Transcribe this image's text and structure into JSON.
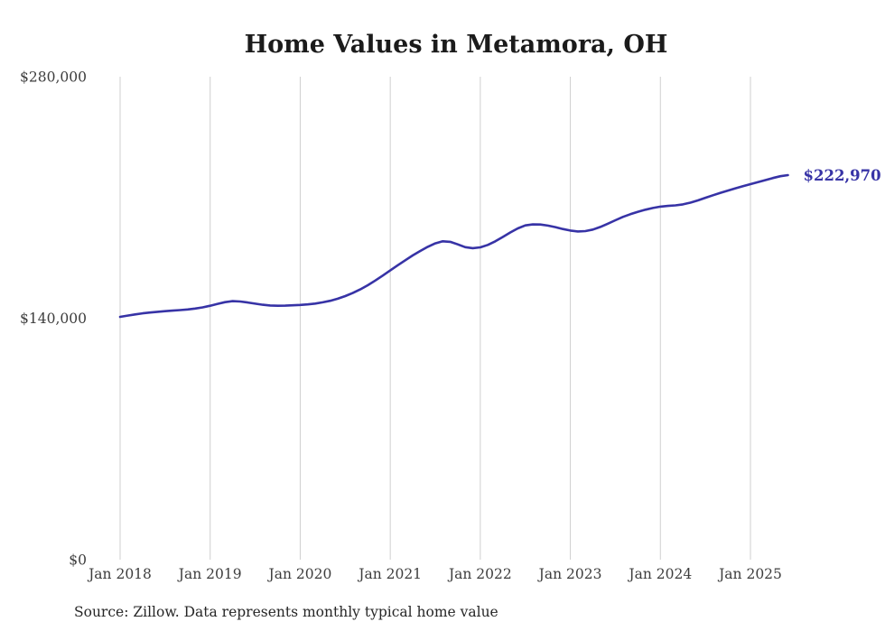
{
  "page": {
    "background_color": "#ffffff"
  },
  "chart_data": {
    "type": "line",
    "title": "Home Values in Metamora, OH",
    "source_note": "Source: Zillow. Data represents monthly typical home value",
    "series_name": "Typical home value",
    "interval": "monthly",
    "x_start_label": "Jan 2018",
    "x_end_label": "Jun 2025",
    "x_tick_labels": [
      "Jan 2018",
      "Jan 2019",
      "Jan 2020",
      "Jan 2021",
      "Jan 2022",
      "Jan 2023",
      "Jan 2024",
      "Jan 2025"
    ],
    "y_tick_labels": [
      "$0",
      "$140,000",
      "$280,000"
    ],
    "y_tick_values": [
      0,
      140000,
      280000
    ],
    "ylim": [
      0,
      280000
    ],
    "grid": "vertical-only",
    "legend": "none",
    "end_label": "$222,970",
    "end_value": 222970,
    "line_color": "#3733a6",
    "grid_color": "#cfcfcf",
    "values": [
      140800,
      141500,
      142200,
      142800,
      143300,
      143700,
      144100,
      144400,
      144700,
      145100,
      145600,
      146300,
      147200,
      148300,
      149300,
      149900,
      149700,
      149100,
      148400,
      147800,
      147400,
      147200,
      147300,
      147500,
      147700,
      148000,
      148500,
      149200,
      150100,
      151300,
      152800,
      154600,
      156700,
      159100,
      161800,
      164700,
      167700,
      170700,
      173600,
      176400,
      179000,
      181400,
      183400,
      184600,
      184300,
      182800,
      181200,
      180600,
      181100,
      182500,
      184600,
      187100,
      189700,
      192100,
      193800,
      194400,
      194300,
      193700,
      192800,
      191700,
      190800,
      190300,
      190500,
      191400,
      192900,
      194800,
      196800,
      198700,
      200300,
      201700,
      202900,
      203900,
      204700,
      205100,
      205400,
      206000,
      207000,
      208300,
      209800,
      211300,
      212700,
      214000,
      215300,
      216500,
      217700,
      218900,
      220100,
      221300,
      222300,
      222970
    ]
  }
}
